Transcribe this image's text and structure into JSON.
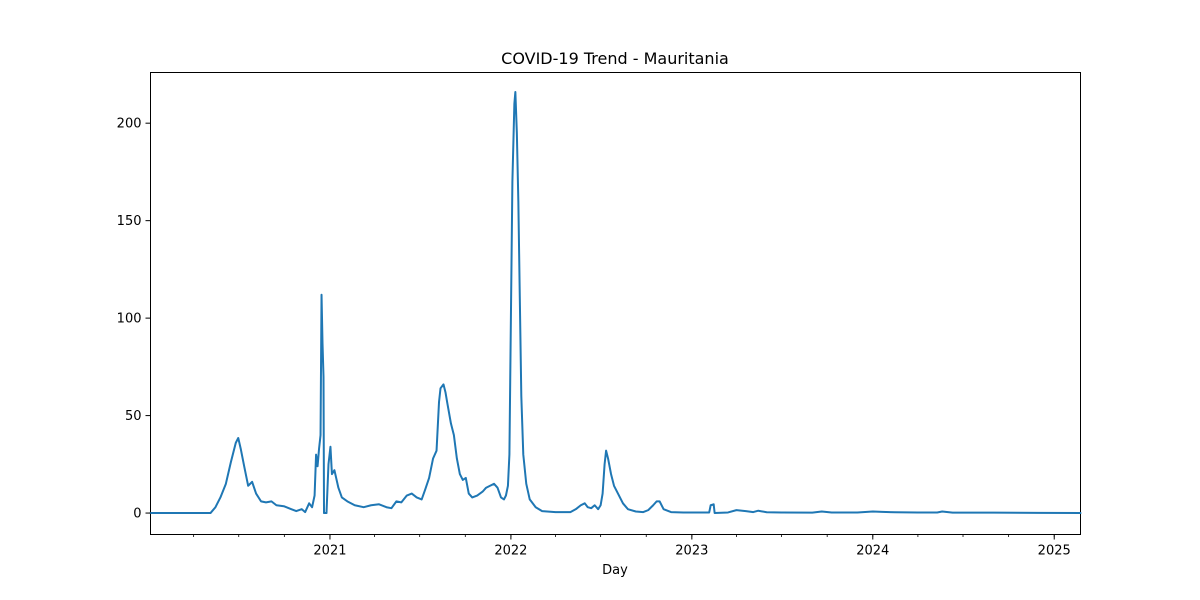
{
  "chart_data": {
    "type": "line",
    "title": "COVID-19 Trend - Mauritania",
    "xlabel": "Day",
    "ylabel": "",
    "x_range": [
      "2020-01-05",
      "2025-02-23"
    ],
    "ylim": [
      -11,
      226
    ],
    "grid": false,
    "legend": "none",
    "x_ticks": [
      {
        "date": "2021-01-01",
        "label": "2021"
      },
      {
        "date": "2022-01-01",
        "label": "2022"
      },
      {
        "date": "2023-01-01",
        "label": "2023"
      },
      {
        "date": "2024-01-01",
        "label": "2024"
      },
      {
        "date": "2025-01-01",
        "label": "2025"
      }
    ],
    "y_ticks": [
      0,
      50,
      100,
      150,
      200
    ],
    "series": [
      {
        "color": "#1f77b4",
        "points": [
          [
            "2020-01-05",
            0
          ],
          [
            "2020-04-05",
            0
          ],
          [
            "2020-05-05",
            0
          ],
          [
            "2020-05-15",
            3
          ],
          [
            "2020-05-25",
            8
          ],
          [
            "2020-06-05",
            15
          ],
          [
            "2020-06-15",
            26
          ],
          [
            "2020-06-25",
            36
          ],
          [
            "2020-06-30",
            38.5
          ],
          [
            "2020-07-05",
            33
          ],
          [
            "2020-07-12",
            24
          ],
          [
            "2020-07-20",
            14
          ],
          [
            "2020-07-28",
            16
          ],
          [
            "2020-08-05",
            10
          ],
          [
            "2020-08-15",
            6
          ],
          [
            "2020-08-25",
            5.5
          ],
          [
            "2020-09-05",
            6
          ],
          [
            "2020-09-15",
            4
          ],
          [
            "2020-09-30",
            3.5
          ],
          [
            "2020-10-15",
            2
          ],
          [
            "2020-10-25",
            1
          ],
          [
            "2020-11-05",
            2
          ],
          [
            "2020-11-12",
            0.5
          ],
          [
            "2020-11-20",
            5
          ],
          [
            "2020-11-26",
            3
          ],
          [
            "2020-12-01",
            9
          ],
          [
            "2020-12-04",
            30
          ],
          [
            "2020-12-07",
            24
          ],
          [
            "2020-12-10",
            33
          ],
          [
            "2020-12-13",
            40
          ],
          [
            "2020-12-15",
            112
          ],
          [
            "2020-12-17",
            87
          ],
          [
            "2020-12-19",
            70
          ],
          [
            "2020-12-20",
            0
          ],
          [
            "2020-12-25",
            0
          ],
          [
            "2020-12-29",
            25
          ],
          [
            "2021-01-02",
            34
          ],
          [
            "2021-01-05",
            20
          ],
          [
            "2021-01-10",
            22
          ],
          [
            "2021-01-18",
            13
          ],
          [
            "2021-01-25",
            8
          ],
          [
            "2021-02-05",
            6
          ],
          [
            "2021-02-20",
            4
          ],
          [
            "2021-03-10",
            3
          ],
          [
            "2021-03-25",
            4
          ],
          [
            "2021-04-10",
            4.5
          ],
          [
            "2021-04-25",
            3
          ],
          [
            "2021-05-05",
            2.5
          ],
          [
            "2021-05-15",
            6
          ],
          [
            "2021-05-25",
            5.5
          ],
          [
            "2021-06-05",
            9
          ],
          [
            "2021-06-15",
            10
          ],
          [
            "2021-06-25",
            8
          ],
          [
            "2021-07-05",
            7
          ],
          [
            "2021-07-12",
            12
          ],
          [
            "2021-07-20",
            18
          ],
          [
            "2021-07-28",
            28
          ],
          [
            "2021-08-04",
            32
          ],
          [
            "2021-08-09",
            57
          ],
          [
            "2021-08-12",
            64
          ],
          [
            "2021-08-18",
            66
          ],
          [
            "2021-08-22",
            62
          ],
          [
            "2021-08-26",
            56
          ],
          [
            "2021-09-02",
            46
          ],
          [
            "2021-09-08",
            40
          ],
          [
            "2021-09-14",
            28
          ],
          [
            "2021-09-20",
            20
          ],
          [
            "2021-09-26",
            17
          ],
          [
            "2021-10-02",
            18
          ],
          [
            "2021-10-08",
            10
          ],
          [
            "2021-10-15",
            8
          ],
          [
            "2021-10-25",
            9
          ],
          [
            "2021-11-05",
            11
          ],
          [
            "2021-11-12",
            13
          ],
          [
            "2021-11-20",
            14
          ],
          [
            "2021-11-28",
            15
          ],
          [
            "2021-12-05",
            13
          ],
          [
            "2021-12-12",
            8
          ],
          [
            "2021-12-18",
            7
          ],
          [
            "2021-12-22",
            9
          ],
          [
            "2021-12-26",
            14
          ],
          [
            "2021-12-29",
            30
          ],
          [
            "2022-01-01",
            100
          ],
          [
            "2022-01-04",
            170
          ],
          [
            "2022-01-08",
            210
          ],
          [
            "2022-01-10",
            216
          ],
          [
            "2022-01-13",
            195
          ],
          [
            "2022-01-16",
            160
          ],
          [
            "2022-01-19",
            110
          ],
          [
            "2022-01-22",
            60
          ],
          [
            "2022-01-26",
            30
          ],
          [
            "2022-02-01",
            15
          ],
          [
            "2022-02-08",
            7
          ],
          [
            "2022-02-20",
            3
          ],
          [
            "2022-03-05",
            1
          ],
          [
            "2022-04-01",
            0.5
          ],
          [
            "2022-05-01",
            0.5
          ],
          [
            "2022-05-12",
            2
          ],
          [
            "2022-05-22",
            4
          ],
          [
            "2022-05-30",
            5
          ],
          [
            "2022-06-05",
            3
          ],
          [
            "2022-06-12",
            2.5
          ],
          [
            "2022-06-19",
            4
          ],
          [
            "2022-06-26",
            2
          ],
          [
            "2022-07-01",
            4
          ],
          [
            "2022-07-05",
            10
          ],
          [
            "2022-07-09",
            25
          ],
          [
            "2022-07-12",
            32
          ],
          [
            "2022-07-16",
            28
          ],
          [
            "2022-07-22",
            20
          ],
          [
            "2022-07-28",
            14
          ],
          [
            "2022-08-05",
            10
          ],
          [
            "2022-08-15",
            5
          ],
          [
            "2022-08-25",
            2
          ],
          [
            "2022-09-10",
            0.8
          ],
          [
            "2022-09-25",
            0.5
          ],
          [
            "2022-10-05",
            1.5
          ],
          [
            "2022-10-15",
            4
          ],
          [
            "2022-10-22",
            6
          ],
          [
            "2022-10-28",
            6
          ],
          [
            "2022-11-05",
            2
          ],
          [
            "2022-11-20",
            0.5
          ],
          [
            "2022-12-15",
            0.3
          ],
          [
            "2023-01-15",
            0.3
          ],
          [
            "2023-02-05",
            0.3
          ],
          [
            "2023-02-08",
            4
          ],
          [
            "2023-02-14",
            4.5
          ],
          [
            "2023-02-16",
            0
          ],
          [
            "2023-03-15",
            0.3
          ],
          [
            "2023-04-01",
            1.5
          ],
          [
            "2023-04-20",
            1
          ],
          [
            "2023-05-05",
            0.5
          ],
          [
            "2023-05-15",
            1.2
          ],
          [
            "2023-06-01",
            0.4
          ],
          [
            "2023-07-01",
            0.3
          ],
          [
            "2023-09-01",
            0.2
          ],
          [
            "2023-09-20",
            0.8
          ],
          [
            "2023-10-10",
            0.3
          ],
          [
            "2023-12-01",
            0.3
          ],
          [
            "2024-01-01",
            0.8
          ],
          [
            "2024-01-20",
            0.6
          ],
          [
            "2024-02-15",
            0.4
          ],
          [
            "2024-04-01",
            0.3
          ],
          [
            "2024-05-10",
            0.3
          ],
          [
            "2024-05-20",
            0.8
          ],
          [
            "2024-06-10",
            0.2
          ],
          [
            "2024-09-01",
            0.2
          ],
          [
            "2024-12-01",
            0.1
          ],
          [
            "2025-02-23",
            0
          ]
        ]
      }
    ]
  }
}
